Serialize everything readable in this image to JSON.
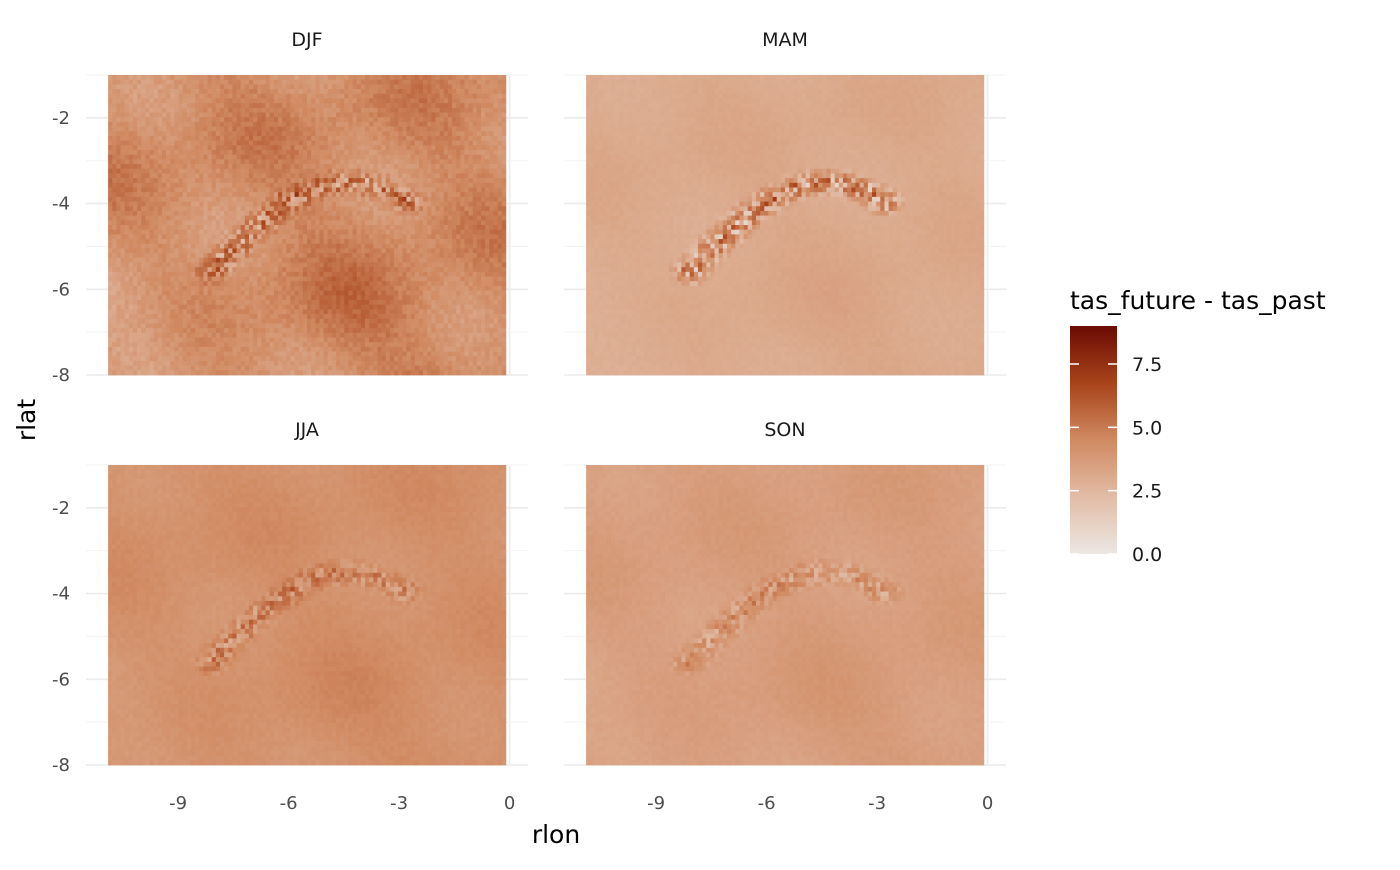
{
  "chart_data": {
    "type": "heatmap",
    "facet_layout": "2x2",
    "facets": [
      {
        "name": "DJF",
        "mean": 4.4,
        "spread": 1.6,
        "alps_anomaly": 2.8
      },
      {
        "name": "MAM",
        "mean": 3.1,
        "spread": 0.4,
        "alps_anomaly": 3.5
      },
      {
        "name": "JJA",
        "mean": 4.2,
        "spread": 0.6,
        "alps_anomaly": 1.8
      },
      {
        "name": "SON",
        "mean": 3.6,
        "spread": 0.5,
        "alps_anomaly": 1.6
      }
    ],
    "xlabel": "rlon",
    "ylabel": "rlat",
    "x_ticks": [
      "-9",
      "-6",
      "-3",
      "0"
    ],
    "y_ticks": [
      "-2",
      "-4",
      "-6",
      "-8"
    ],
    "x_tick_values": [
      -9,
      -6,
      -3,
      0
    ],
    "y_tick_values": [
      -2,
      -4,
      -6,
      -8
    ],
    "x_data_range": [
      -10.9,
      -0.1
    ],
    "y_data_range": [
      -8.0,
      -1.0
    ],
    "xlim": [
      -11.5,
      0.5
    ],
    "ylim": [
      -8.0,
      -1.0
    ],
    "legend": {
      "title": "tas_future - tas_past",
      "position": "right",
      "ticks": [
        "7.5",
        "5.0",
        "2.5",
        "0.0"
      ],
      "tick_values": [
        7.5,
        5.0,
        2.5,
        0.0
      ],
      "range": [
        0.0,
        9.0
      ]
    },
    "colors": [
      "#ebe7e3",
      "#e2bca6",
      "#d08a62",
      "#a8431a",
      "#6a0b03"
    ],
    "grid": true,
    "theme": "minimal"
  }
}
